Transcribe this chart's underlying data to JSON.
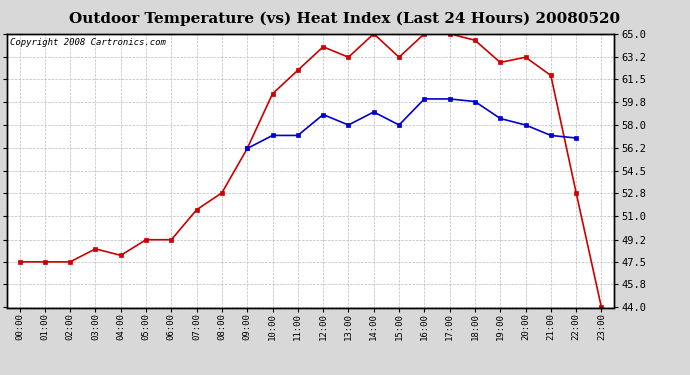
{
  "title": "Outdoor Temperature (vs) Heat Index (Last 24 Hours) 20080520",
  "copyright": "Copyright 2008 Cartronics.com",
  "hours": [
    "00:00",
    "01:00",
    "02:00",
    "03:00",
    "04:00",
    "05:00",
    "06:00",
    "07:00",
    "08:00",
    "09:00",
    "10:00",
    "11:00",
    "12:00",
    "13:00",
    "14:00",
    "15:00",
    "16:00",
    "17:00",
    "18:00",
    "19:00",
    "20:00",
    "21:00",
    "22:00",
    "23:00"
  ],
  "temp": [
    47.5,
    47.5,
    47.5,
    48.5,
    48.0,
    49.2,
    49.2,
    51.5,
    52.8,
    56.2,
    60.4,
    62.2,
    64.0,
    63.2,
    65.0,
    63.2,
    65.0,
    65.0,
    64.5,
    62.8,
    63.2,
    61.8,
    52.8,
    44.0
  ],
  "heat_index": [
    null,
    null,
    null,
    null,
    null,
    null,
    null,
    null,
    null,
    56.2,
    57.2,
    57.2,
    58.8,
    58.0,
    59.0,
    58.0,
    60.0,
    60.0,
    59.8,
    58.5,
    58.0,
    57.2,
    57.0,
    null
  ],
  "ylim_min": 44.0,
  "ylim_max": 65.0,
  "yticks": [
    44.0,
    45.8,
    47.5,
    49.2,
    51.0,
    52.8,
    54.5,
    56.2,
    58.0,
    59.8,
    61.5,
    63.2,
    65.0
  ],
  "temp_color": "#cc0000",
  "heat_index_color": "#0000cc",
  "bg_color": "#d8d8d8",
  "plot_bg_color": "#ffffff",
  "grid_color": "#bbbbbb",
  "title_fontsize": 11,
  "copyright_fontsize": 6.5
}
